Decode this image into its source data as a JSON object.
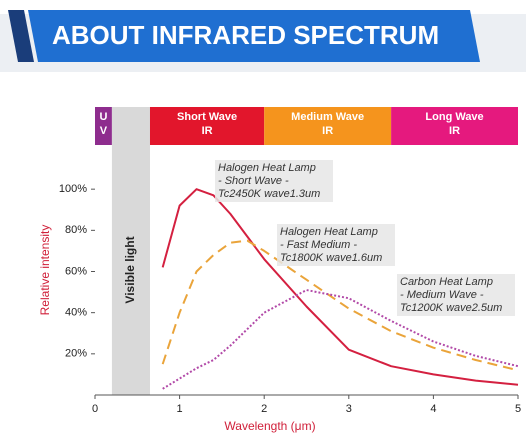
{
  "chart_data": {
    "type": "line",
    "title": "ABOUT INFRARED SPECTRUM",
    "x_label": "Wavelength (μm)",
    "y_label": "Relative intensity",
    "xlim": [
      0,
      5
    ],
    "xticks": [
      0,
      1,
      2,
      3,
      4,
      5
    ],
    "ylim": [
      0,
      120
    ],
    "yticks": [
      {
        "value": 20,
        "label": "20%"
      },
      {
        "value": 40,
        "label": "40%"
      },
      {
        "value": 60,
        "label": "60%"
      },
      {
        "value": 80,
        "label": "80%"
      },
      {
        "value": 100,
        "label": "100%"
      }
    ],
    "grid": false,
    "bands": [
      {
        "label": [
          "U",
          "V"
        ],
        "color": "#8e2d8e",
        "range": [
          0,
          0.2
        ]
      },
      {
        "label": [
          "Visible light"
        ],
        "color": "#d9d9d9",
        "range": [
          0.2,
          0.65
        ]
      },
      {
        "label": [
          "Short Wave",
          "IR"
        ],
        "color": "#e2162c",
        "range": [
          0.65,
          2
        ]
      },
      {
        "label": [
          "Medium Wave",
          "IR"
        ],
        "color": "#f5941d",
        "range": [
          2,
          3.5
        ]
      },
      {
        "label": [
          "Long Wave",
          "IR"
        ],
        "color": "#e5197e",
        "range": [
          3.5,
          5
        ]
      }
    ],
    "x": [
      0.8,
      1.0,
      1.2,
      1.4,
      1.6,
      1.8,
      2.0,
      2.5,
      3.0,
      3.5,
      4.0,
      4.5,
      5.0
    ],
    "series": [
      {
        "annotation": [
          "Halogen Heat Lamp",
          "- Short Wave -",
          "Tc2450K  wave1.3um"
        ],
        "color": "#d42040",
        "style": "solid",
        "values": [
          62,
          92,
          100,
          97,
          88,
          77,
          66,
          43,
          22,
          14,
          10,
          7,
          5
        ]
      },
      {
        "annotation": [
          "Halogen Heat Lamp",
          "- Fast Medium -",
          "Tc1800K wave1.6um"
        ],
        "color": "#eaa43a",
        "style": "dashed",
        "values": [
          15,
          40,
          60,
          68,
          74,
          75,
          70,
          56,
          42,
          31,
          23,
          17,
          12
        ]
      },
      {
        "annotation": [
          "Carbon Heat Lamp",
          "- Medium Wave -",
          "Tc1200K  wave2.5um"
        ],
        "color": "#b24aa8",
        "style": "dotted",
        "values": [
          3,
          8,
          13,
          17,
          24,
          32,
          40,
          51,
          47,
          36,
          26,
          19,
          14
        ]
      }
    ]
  }
}
